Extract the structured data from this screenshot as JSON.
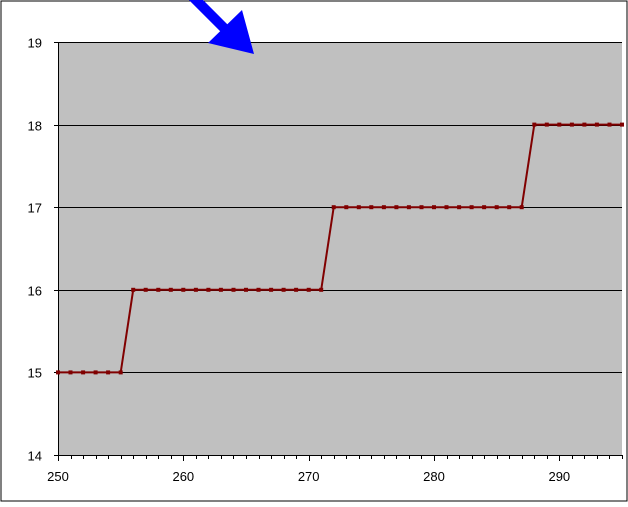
{
  "chart_data": {
    "type": "line",
    "title": "",
    "xlabel": "",
    "ylabel": "",
    "xlim": [
      250,
      295
    ],
    "ylim": [
      14,
      19
    ],
    "x_ticks": [
      250,
      260,
      270,
      280,
      290
    ],
    "y_ticks": [
      14,
      15,
      16,
      17,
      18,
      19
    ],
    "x_tick_labels": [
      "250",
      "260",
      "270",
      "280",
      "290"
    ],
    "y_tick_labels": [
      "14",
      "15",
      "16",
      "17",
      "18",
      "19"
    ],
    "grid": "horizontal",
    "legend": "none",
    "series": [
      {
        "color": "#800000",
        "marker": "square",
        "x": [
          250,
          251,
          252,
          253,
          254,
          255,
          256,
          257,
          258,
          259,
          260,
          261,
          262,
          263,
          264,
          265,
          266,
          267,
          268,
          269,
          270,
          271,
          272,
          273,
          274,
          275,
          276,
          277,
          278,
          279,
          280,
          281,
          282,
          283,
          284,
          285,
          286,
          287,
          288,
          289,
          290,
          291,
          292,
          293,
          294,
          295
        ],
        "values": [
          15,
          15,
          15,
          15,
          15,
          15,
          16,
          16,
          16,
          16,
          16,
          16,
          16,
          16,
          16,
          16,
          16,
          16,
          16,
          16,
          16,
          16,
          17,
          17,
          17,
          17,
          17,
          17,
          17,
          17,
          17,
          17,
          17,
          17,
          17,
          17,
          17,
          17,
          18,
          18,
          18,
          18,
          18,
          18,
          18,
          18
        ]
      }
    ],
    "annotation": {
      "type": "arrow",
      "color": "#0000ff",
      "direction": "down-right"
    },
    "plot_background": "#c0c0c0",
    "gridline_color": "#000000"
  }
}
